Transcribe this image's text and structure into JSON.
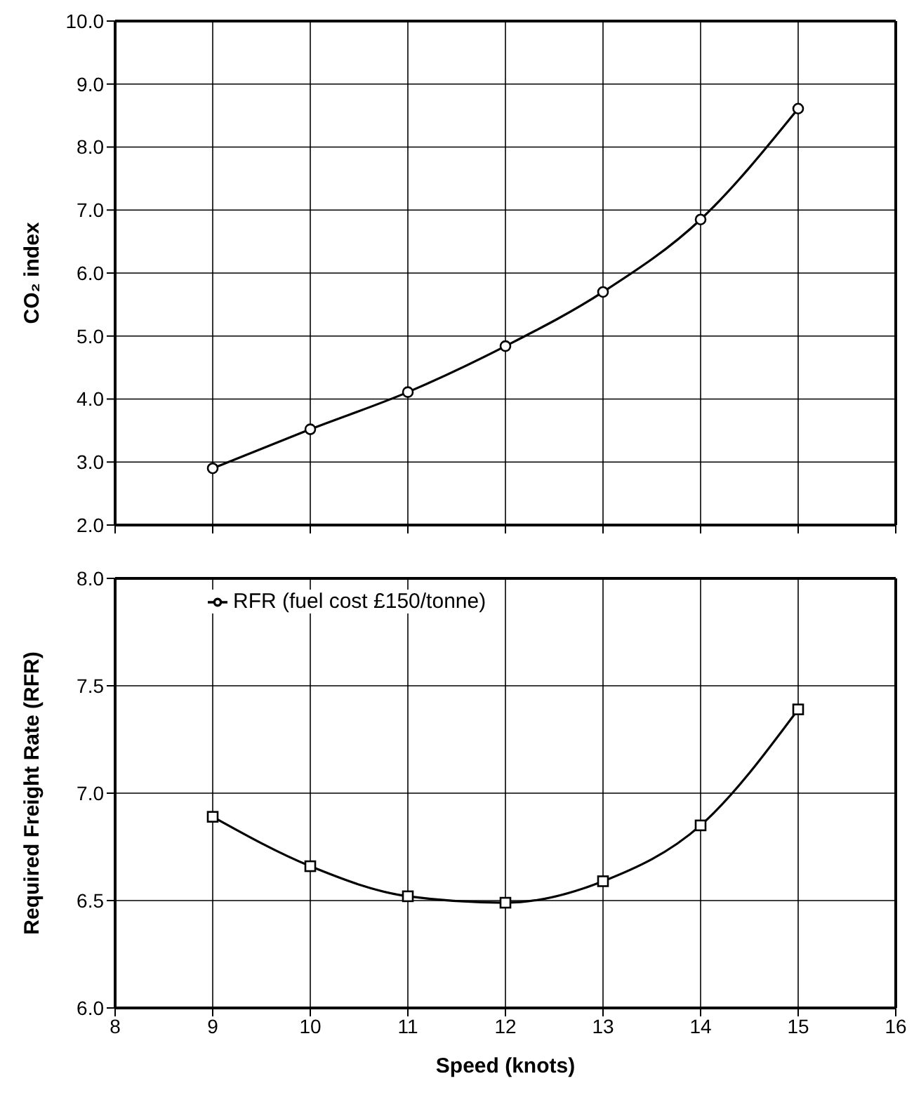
{
  "chart_data": [
    {
      "type": "line",
      "ylabel": "CO₂ index",
      "x": [
        9,
        10,
        11,
        12,
        13,
        14,
        15
      ],
      "series": [
        {
          "color": "#000000",
          "values": [
            2.9,
            3.52,
            4.11,
            4.84,
            5.7,
            6.85,
            8.61
          ]
        }
      ],
      "xlim": [
        8,
        16
      ],
      "xticks": [
        8,
        9,
        10,
        11,
        12,
        13,
        14,
        15,
        16
      ],
      "ylim": [
        2,
        10
      ],
      "yticks": [
        {
          "value": 2,
          "label": "2.0"
        },
        {
          "value": 3,
          "label": "3.0"
        },
        {
          "value": 4,
          "label": "4.0"
        },
        {
          "value": 5,
          "label": "5.0"
        },
        {
          "value": 6,
          "label": "6.0"
        },
        {
          "value": 7,
          "label": "7.0"
        },
        {
          "value": 8,
          "label": "8.0"
        },
        {
          "value": 9,
          "label": "9.0"
        },
        {
          "value": 10,
          "label": "10.0"
        }
      ],
      "grid": true,
      "marker": "circle",
      "tick_labels": "y"
    },
    {
      "type": "line",
      "xlabel": "Speed (knots)",
      "ylabel": "Required Freight Rate (RFR)",
      "x": [
        9,
        10,
        11,
        12,
        13,
        14,
        15
      ],
      "series": [
        {
          "name": "RFR (fuel cost £150/tonne)",
          "color": "#000000",
          "values": [
            6.89,
            6.66,
            6.52,
            6.49,
            6.59,
            6.85,
            7.39
          ]
        }
      ],
      "xlim": [
        8,
        16
      ],
      "xticks": [
        8,
        9,
        10,
        11,
        12,
        13,
        14,
        15,
        16
      ],
      "ylim": [
        6,
        8
      ],
      "yticks": [
        {
          "value": 6,
          "label": "6.0"
        },
        {
          "value": 6.5,
          "label": "6.5"
        },
        {
          "value": 7,
          "label": "7.0"
        },
        {
          "value": 7.5,
          "label": "7.5"
        },
        {
          "value": 8,
          "label": "8.0"
        }
      ],
      "grid": true,
      "marker": "square",
      "legend": "top left"
    }
  ]
}
